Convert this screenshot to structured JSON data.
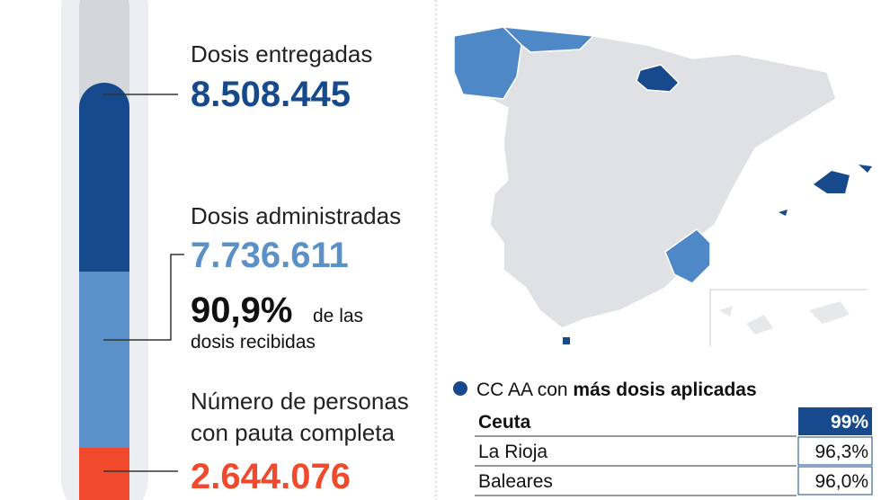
{
  "thermometer": {
    "delivered": {
      "label": "Dosis entregadas",
      "value": "8.508.445"
    },
    "administered": {
      "label": "Dosis administradas",
      "value": "7.736.611",
      "percent": "90,9%",
      "percent_text_1": "de las",
      "percent_text_2": "dosis recibidas"
    },
    "complete": {
      "label_1": "Número de personas",
      "label_2": "con pauta completa",
      "value": "2.644.076"
    }
  },
  "legend": {
    "text": "CC AA con ",
    "bold": "más dosis aplicadas"
  },
  "table": {
    "rows": [
      [
        "Ceuta",
        "99%"
      ],
      [
        "La Rioja",
        "96,3%"
      ],
      [
        "Baleares",
        "96,0%"
      ]
    ]
  }
}
